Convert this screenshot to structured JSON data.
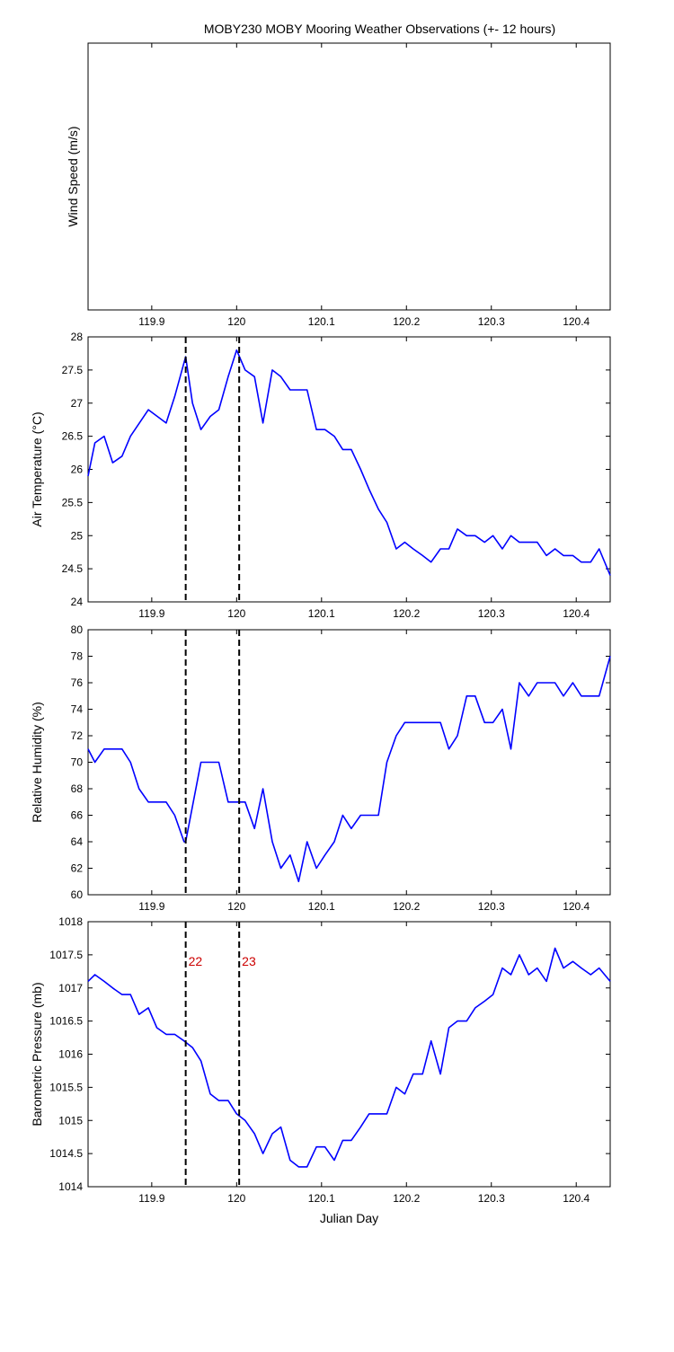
{
  "title": "MOBY230 MOBY Mooring Weather Observations (+- 12 hours)",
  "colors": {
    "series": "#0000ff",
    "marker_line": "#000000",
    "marker_label": "#cc0000",
    "axes": "#000000"
  },
  "chart_data": [
    {
      "type": "line",
      "ylabel": "Wind Speed (m/s)",
      "xlabel": "",
      "xlim": [
        119.825,
        120.44
      ],
      "ylim": null,
      "xticks": [
        119.9,
        120,
        120.1,
        120.2,
        120.3,
        120.4
      ],
      "xtick_labels": [
        "119.9",
        "120",
        "120.1",
        "120.2",
        "120.3",
        "120.4"
      ],
      "yticks": [],
      "ytick_labels": [],
      "grid": false,
      "series": [
        {
          "x": [],
          "y": []
        }
      ],
      "markers": []
    },
    {
      "type": "line",
      "ylabel": "Air Temperature (°C)",
      "xlabel": "",
      "xlim": [
        119.825,
        120.44
      ],
      "ylim": [
        24,
        28
      ],
      "xticks": [
        119.9,
        120,
        120.1,
        120.2,
        120.3,
        120.4
      ],
      "xtick_labels": [
        "119.9",
        "120",
        "120.1",
        "120.2",
        "120.3",
        "120.4"
      ],
      "yticks": [
        24,
        24.5,
        25,
        25.5,
        26,
        26.5,
        27,
        27.5,
        28
      ],
      "ytick_labels": [
        "24",
        "24.5",
        "25",
        "25.5",
        "26",
        "26.5",
        "27",
        "27.5",
        "28"
      ],
      "grid": false,
      "series": [
        {
          "x": [
            119.825,
            119.833,
            119.844,
            119.854,
            119.865,
            119.875,
            119.896,
            119.917,
            119.927,
            119.94,
            119.948,
            119.958,
            119.969,
            119.979,
            119.99,
            120.0,
            120.01,
            120.021,
            120.031,
            120.042,
            120.052,
            120.063,
            120.073,
            120.083,
            120.094,
            120.104,
            120.115,
            120.125,
            120.135,
            120.146,
            120.156,
            120.167,
            120.177,
            120.188,
            120.198,
            120.208,
            120.219,
            120.229,
            120.24,
            120.25,
            120.26,
            120.271,
            120.281,
            120.292,
            120.302,
            120.313,
            120.323,
            120.333,
            120.344,
            120.354,
            120.365,
            120.375,
            120.385,
            120.396,
            120.406,
            120.417,
            120.427,
            120.44
          ],
          "y": [
            25.9,
            26.4,
            26.5,
            26.1,
            26.2,
            26.5,
            26.9,
            26.7,
            27.1,
            27.7,
            27.0,
            26.6,
            26.8,
            26.9,
            27.4,
            27.8,
            27.5,
            27.4,
            26.7,
            27.5,
            27.4,
            27.2,
            27.2,
            27.2,
            26.6,
            26.6,
            26.5,
            26.3,
            26.3,
            26.0,
            25.7,
            25.4,
            25.2,
            24.8,
            24.9,
            24.8,
            24.7,
            24.6,
            24.8,
            24.8,
            25.1,
            25.0,
            25.0,
            24.9,
            25.0,
            24.8,
            25.0,
            24.9,
            24.9,
            24.9,
            24.7,
            24.8,
            24.7,
            24.7,
            24.6,
            24.6,
            24.8,
            24.4
          ]
        }
      ],
      "markers": [
        {
          "x": 119.94,
          "label": ""
        },
        {
          "x": 120.003,
          "label": ""
        }
      ]
    },
    {
      "type": "line",
      "ylabel": "Relative Humidity (%)",
      "xlabel": "",
      "xlim": [
        119.825,
        120.44
      ],
      "ylim": [
        60,
        80
      ],
      "xticks": [
        119.9,
        120,
        120.1,
        120.2,
        120.3,
        120.4
      ],
      "xtick_labels": [
        "119.9",
        "120",
        "120.1",
        "120.2",
        "120.3",
        "120.4"
      ],
      "yticks": [
        60,
        62,
        64,
        66,
        68,
        70,
        72,
        74,
        76,
        78,
        80
      ],
      "ytick_labels": [
        "60",
        "62",
        "64",
        "66",
        "68",
        "70",
        "72",
        "74",
        "76",
        "78",
        "80"
      ],
      "grid": false,
      "series": [
        {
          "x": [
            119.825,
            119.833,
            119.844,
            119.854,
            119.865,
            119.875,
            119.885,
            119.896,
            119.906,
            119.917,
            119.927,
            119.938,
            119.94,
            119.958,
            119.969,
            119.979,
            119.99,
            120.0,
            120.01,
            120.021,
            120.031,
            120.042,
            120.052,
            120.063,
            120.073,
            120.083,
            120.094,
            120.104,
            120.115,
            120.125,
            120.135,
            120.146,
            120.156,
            120.167,
            120.177,
            120.188,
            120.198,
            120.208,
            120.219,
            120.229,
            120.24,
            120.25,
            120.26,
            120.271,
            120.281,
            120.292,
            120.302,
            120.313,
            120.323,
            120.333,
            120.344,
            120.354,
            120.365,
            120.375,
            120.385,
            120.396,
            120.406,
            120.417,
            120.427,
            120.44
          ],
          "y": [
            71,
            70,
            71,
            71,
            71,
            70,
            68,
            67,
            67,
            67,
            66,
            64,
            64,
            70,
            70,
            70,
            67,
            67,
            67,
            65,
            68,
            64,
            62,
            63,
            61,
            64,
            62,
            63,
            64,
            66,
            65,
            66,
            66,
            66,
            70,
            72,
            73,
            73,
            73,
            73,
            73,
            71,
            72,
            75,
            75,
            73,
            73,
            74,
            71,
            76,
            75,
            76,
            76,
            76,
            75,
            76,
            75,
            75,
            75,
            78
          ]
        }
      ],
      "markers": [
        {
          "x": 119.94,
          "label": ""
        },
        {
          "x": 120.003,
          "label": ""
        }
      ]
    },
    {
      "type": "line",
      "ylabel": "Barometric Pressure (mb)",
      "xlabel": "Julian Day",
      "xlim": [
        119.825,
        120.44
      ],
      "ylim": [
        1014,
        1018
      ],
      "xticks": [
        119.9,
        120,
        120.1,
        120.2,
        120.3,
        120.4
      ],
      "xtick_labels": [
        "119.9",
        "120",
        "120.1",
        "120.2",
        "120.3",
        "120.4"
      ],
      "yticks": [
        1014,
        1014.5,
        1015,
        1015.5,
        1016,
        1016.5,
        1017,
        1017.5,
        1018
      ],
      "ytick_labels": [
        "1014",
        "1014.5",
        "1015",
        "1015.5",
        "1016",
        "1016.5",
        "1017",
        "1017.5",
        "1018"
      ],
      "grid": false,
      "series": [
        {
          "x": [
            119.825,
            119.833,
            119.844,
            119.854,
            119.865,
            119.875,
            119.885,
            119.896,
            119.906,
            119.917,
            119.927,
            119.938,
            119.948,
            119.958,
            119.969,
            119.979,
            119.99,
            120.0,
            120.01,
            120.021,
            120.031,
            120.042,
            120.052,
            120.063,
            120.073,
            120.083,
            120.094,
            120.104,
            120.115,
            120.125,
            120.135,
            120.146,
            120.156,
            120.167,
            120.177,
            120.188,
            120.198,
            120.208,
            120.219,
            120.229,
            120.24,
            120.25,
            120.26,
            120.271,
            120.281,
            120.292,
            120.302,
            120.313,
            120.323,
            120.333,
            120.344,
            120.354,
            120.365,
            120.375,
            120.385,
            120.396,
            120.406,
            120.417,
            120.427,
            120.44
          ],
          "y": [
            1017.1,
            1017.2,
            1017.1,
            1017.0,
            1016.9,
            1016.9,
            1016.6,
            1016.7,
            1016.4,
            1016.3,
            1016.3,
            1016.2,
            1016.1,
            1015.9,
            1015.4,
            1015.3,
            1015.3,
            1015.1,
            1015.0,
            1014.8,
            1014.5,
            1014.8,
            1014.9,
            1014.4,
            1014.3,
            1014.3,
            1014.6,
            1014.6,
            1014.4,
            1014.7,
            1014.7,
            1014.9,
            1015.1,
            1015.1,
            1015.1,
            1015.5,
            1015.4,
            1015.7,
            1015.7,
            1016.2,
            1015.7,
            1016.4,
            1016.5,
            1016.5,
            1016.7,
            1016.8,
            1016.9,
            1017.3,
            1017.2,
            1017.5,
            1017.2,
            1017.3,
            1017.1,
            1017.6,
            1017.3,
            1017.4,
            1017.3,
            1017.2,
            1017.3,
            1017.1
          ]
        }
      ],
      "markers": [
        {
          "x": 119.94,
          "label": "22"
        },
        {
          "x": 120.003,
          "label": "23"
        }
      ]
    }
  ]
}
